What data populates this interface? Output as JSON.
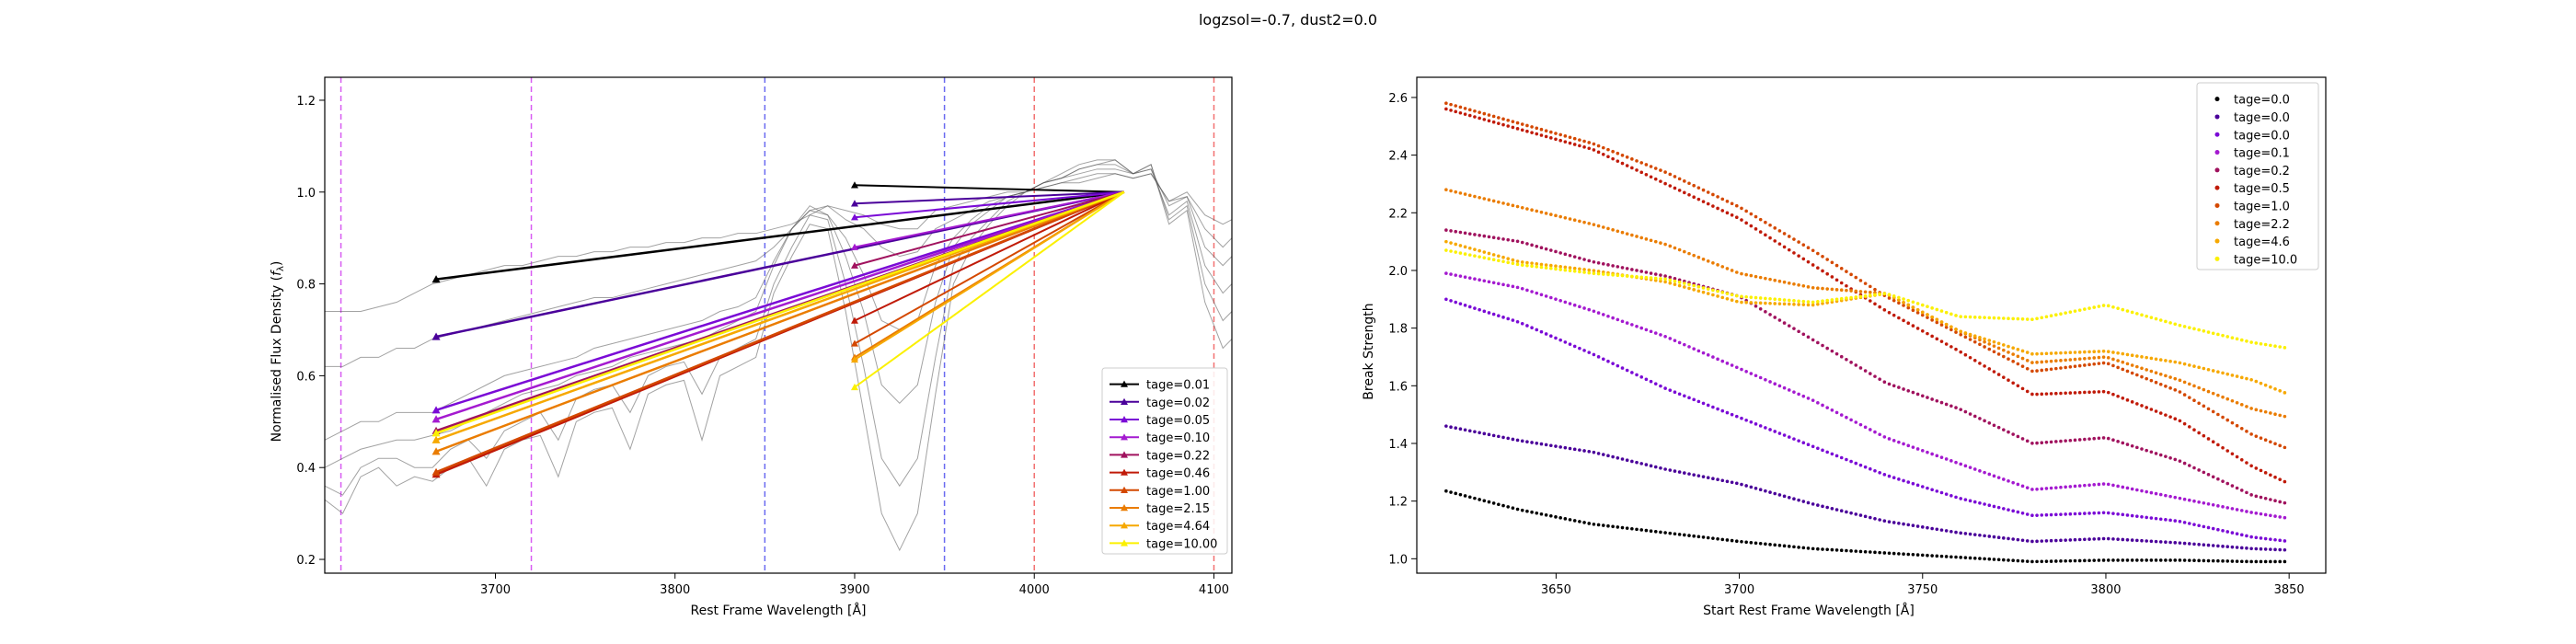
{
  "suptitle": "logzsol=-0.7, dust2=0.0",
  "chart_data": [
    {
      "type": "line",
      "xlabel": "Rest Frame Wavelength [Å]",
      "ylabel": "Normalised Flux Density (f_λ)",
      "xlim": [
        3605,
        4110
      ],
      "ylim": [
        0.17,
        1.25
      ],
      "xticks": [
        3700,
        3800,
        3900,
        4000,
        4100
      ],
      "yticks": [
        0.2,
        0.4,
        0.6,
        0.8,
        1.0,
        1.2
      ],
      "xtick_labels": [
        "3700",
        "3800",
        "3900",
        "4000",
        "4100"
      ],
      "ytick_labels": [
        "0.2",
        "0.4",
        "0.6",
        "0.8",
        "1.0",
        "1.2"
      ],
      "grid": false,
      "legend_position": "lower right",
      "band_lines": [
        {
          "x": 3614,
          "color": "#d85cf2"
        },
        {
          "x": 3720,
          "color": "#d85cf2"
        },
        {
          "x": 3850,
          "color": "#6a6af0"
        },
        {
          "x": 3950,
          "color": "#6a6af0"
        },
        {
          "x": 4000,
          "color": "#f27070"
        },
        {
          "x": 4100,
          "color": "#f27070"
        }
      ],
      "anchor": {
        "x": 4050,
        "y": 1.0
      },
      "series": [
        {
          "name": "tage=0.01",
          "color": "#000000",
          "blue_x": 3667,
          "blue_y": 0.81,
          "red_x": 3900,
          "red_y": 1.015
        },
        {
          "name": "tage=0.02",
          "color": "#4a009a",
          "blue_x": 3667,
          "blue_y": 0.685,
          "red_x": 3900,
          "red_y": 0.975
        },
        {
          "name": "tage=0.05",
          "color": "#7a0ad6",
          "blue_x": 3667,
          "blue_y": 0.525,
          "red_x": 3900,
          "red_y": 0.945
        },
        {
          "name": "tage=0.10",
          "color": "#a41ad0",
          "blue_x": 3667,
          "blue_y": 0.505,
          "red_x": 3900,
          "red_y": 0.88
        },
        {
          "name": "tage=0.22",
          "color": "#a0125e",
          "blue_x": 3667,
          "blue_y": 0.48,
          "red_x": 3900,
          "red_y": 0.84
        },
        {
          "name": "tage=0.46",
          "color": "#c01a08",
          "blue_x": 3667,
          "blue_y": 0.385,
          "red_x": 3900,
          "red_y": 0.72
        },
        {
          "name": "tage=1.00",
          "color": "#d44800",
          "blue_x": 3667,
          "blue_y": 0.39,
          "red_x": 3900,
          "red_y": 0.67
        },
        {
          "name": "tage=2.15",
          "color": "#ea7c00",
          "blue_x": 3667,
          "blue_y": 0.435,
          "red_x": 3900,
          "red_y": 0.64
        },
        {
          "name": "tage=4.64",
          "color": "#f6a800",
          "blue_x": 3667,
          "blue_y": 0.46,
          "red_x": 3900,
          "red_y": 0.635
        },
        {
          "name": "tage=10.00",
          "color": "#fbf000",
          "blue_x": 3667,
          "blue_y": 0.475,
          "red_x": 3900,
          "red_y": 0.575
        }
      ],
      "background_spectra": {
        "color": "#555555",
        "x": [
          3605,
          3615,
          3625,
          3635,
          3645,
          3655,
          3665,
          3675,
          3685,
          3695,
          3705,
          3715,
          3725,
          3735,
          3745,
          3755,
          3765,
          3775,
          3785,
          3795,
          3805,
          3815,
          3825,
          3835,
          3845,
          3855,
          3865,
          3875,
          3885,
          3895,
          3905,
          3915,
          3925,
          3935,
          3945,
          3955,
          3965,
          3975,
          3985,
          3995,
          4005,
          4015,
          4025,
          4035,
          4045,
          4055,
          4065,
          4075,
          4085,
          4095,
          4105,
          4110
        ],
        "curves": [
          [
            0.74,
            0.74,
            0.74,
            0.75,
            0.76,
            0.78,
            0.8,
            0.81,
            0.82,
            0.83,
            0.84,
            0.84,
            0.85,
            0.86,
            0.86,
            0.87,
            0.87,
            0.88,
            0.88,
            0.89,
            0.89,
            0.9,
            0.9,
            0.91,
            0.91,
            0.92,
            0.93,
            0.95,
            0.97,
            0.96,
            0.95,
            0.93,
            0.92,
            0.92,
            0.96,
            0.97,
            0.98,
            0.99,
            1.0,
            1.0,
            1.01,
            1.02,
            1.02,
            1.03,
            1.04,
            1.03,
            1.04,
            0.98,
            1.0,
            0.95,
            0.93,
            0.94
          ],
          [
            0.62,
            0.62,
            0.64,
            0.64,
            0.66,
            0.66,
            0.68,
            0.69,
            0.7,
            0.71,
            0.72,
            0.73,
            0.74,
            0.75,
            0.76,
            0.77,
            0.77,
            0.78,
            0.79,
            0.8,
            0.81,
            0.82,
            0.83,
            0.84,
            0.85,
            0.88,
            0.92,
            0.96,
            0.97,
            0.94,
            0.92,
            0.88,
            0.86,
            0.87,
            0.92,
            0.94,
            0.96,
            0.98,
            0.99,
            1.0,
            1.01,
            1.02,
            1.03,
            1.04,
            1.04,
            1.03,
            1.04,
            0.98,
            0.99,
            0.92,
            0.88,
            0.9
          ],
          [
            0.46,
            0.48,
            0.5,
            0.5,
            0.52,
            0.52,
            0.52,
            0.54,
            0.56,
            0.58,
            0.6,
            0.61,
            0.62,
            0.63,
            0.64,
            0.66,
            0.67,
            0.68,
            0.69,
            0.7,
            0.71,
            0.72,
            0.74,
            0.75,
            0.77,
            0.85,
            0.92,
            0.96,
            0.95,
            0.9,
            0.82,
            0.72,
            0.7,
            0.72,
            0.84,
            0.9,
            0.94,
            0.97,
            0.99,
            1.0,
            1.02,
            1.03,
            1.04,
            1.05,
            1.05,
            1.04,
            1.05,
            0.97,
            0.99,
            0.88,
            0.84,
            0.86
          ],
          [
            0.4,
            0.42,
            0.44,
            0.45,
            0.46,
            0.46,
            0.47,
            0.48,
            0.5,
            0.52,
            0.54,
            0.56,
            0.57,
            0.58,
            0.6,
            0.61,
            0.62,
            0.64,
            0.65,
            0.66,
            0.67,
            0.68,
            0.7,
            0.72,
            0.74,
            0.84,
            0.92,
            0.97,
            0.95,
            0.86,
            0.74,
            0.58,
            0.54,
            0.58,
            0.76,
            0.88,
            0.93,
            0.96,
            0.99,
            1.0,
            1.02,
            1.03,
            1.05,
            1.06,
            1.06,
            1.04,
            1.05,
            0.95,
            0.98,
            0.84,
            0.78,
            0.8
          ],
          [
            0.36,
            0.34,
            0.4,
            0.42,
            0.42,
            0.4,
            0.4,
            0.44,
            0.46,
            0.42,
            0.48,
            0.5,
            0.52,
            0.46,
            0.55,
            0.57,
            0.58,
            0.52,
            0.6,
            0.62,
            0.63,
            0.56,
            0.64,
            0.66,
            0.68,
            0.8,
            0.88,
            0.95,
            0.94,
            0.8,
            0.62,
            0.42,
            0.36,
            0.42,
            0.64,
            0.84,
            0.9,
            0.94,
            0.98,
            1.0,
            1.02,
            1.03,
            1.05,
            1.06,
            1.07,
            1.04,
            1.06,
            0.94,
            0.97,
            0.8,
            0.72,
            0.74
          ],
          [
            0.33,
            0.3,
            0.38,
            0.4,
            0.36,
            0.38,
            0.37,
            0.4,
            0.42,
            0.36,
            0.44,
            0.46,
            0.47,
            0.38,
            0.5,
            0.52,
            0.53,
            0.44,
            0.56,
            0.58,
            0.59,
            0.46,
            0.6,
            0.62,
            0.64,
            0.78,
            0.86,
            0.93,
            0.92,
            0.74,
            0.52,
            0.3,
            0.22,
            0.3,
            0.56,
            0.8,
            0.88,
            0.93,
            0.97,
            1.0,
            1.02,
            1.04,
            1.06,
            1.07,
            1.07,
            1.04,
            1.06,
            0.93,
            0.96,
            0.76,
            0.66,
            0.68
          ]
        ]
      }
    },
    {
      "type": "scatter",
      "xlabel": "Start Rest Frame Wavelength [Å]",
      "ylabel": "Break Strength",
      "xlim": [
        3612,
        3860
      ],
      "ylim": [
        0.95,
        2.67
      ],
      "xticks": [
        3650,
        3700,
        3750,
        3800,
        3850
      ],
      "yticks": [
        1.0,
        1.2,
        1.4,
        1.6,
        1.8,
        2.0,
        2.2,
        2.4,
        2.6
      ],
      "xtick_labels": [
        "3650",
        "3700",
        "3750",
        "3800",
        "3850"
      ],
      "ytick_labels": [
        "1.0",
        "1.2",
        "1.4",
        "1.6",
        "1.8",
        "2.0",
        "2.2",
        "2.4",
        "2.6"
      ],
      "grid": false,
      "legend_position": "upper right",
      "x": [
        3620,
        3640,
        3660,
        3680,
        3700,
        3720,
        3740,
        3760,
        3780,
        3800,
        3820,
        3840,
        3850
      ],
      "series": [
        {
          "name": "tage=0.0",
          "color": "#000000",
          "values": [
            1.235,
            1.17,
            1.12,
            1.09,
            1.06,
            1.035,
            1.02,
            1.005,
            0.99,
            0.995,
            0.995,
            0.99,
            0.99
          ]
        },
        {
          "name": "tage=0.0",
          "color": "#4a009a",
          "values": [
            1.46,
            1.41,
            1.37,
            1.31,
            1.26,
            1.19,
            1.13,
            1.09,
            1.06,
            1.07,
            1.055,
            1.035,
            1.03
          ]
        },
        {
          "name": "tage=0.0",
          "color": "#7a0ad6",
          "values": [
            1.9,
            1.82,
            1.71,
            1.59,
            1.49,
            1.39,
            1.29,
            1.21,
            1.15,
            1.16,
            1.13,
            1.075,
            1.06
          ]
        },
        {
          "name": "tage=0.1",
          "color": "#a41ad0",
          "values": [
            1.99,
            1.94,
            1.86,
            1.77,
            1.66,
            1.55,
            1.42,
            1.33,
            1.24,
            1.26,
            1.21,
            1.16,
            1.14
          ]
        },
        {
          "name": "tage=0.2",
          "color": "#a0125e",
          "values": [
            2.14,
            2.1,
            2.03,
            1.98,
            1.91,
            1.76,
            1.61,
            1.52,
            1.4,
            1.42,
            1.34,
            1.22,
            1.19
          ]
        },
        {
          "name": "tage=0.5",
          "color": "#c01a08",
          "values": [
            2.56,
            2.49,
            2.42,
            2.3,
            2.18,
            2.02,
            1.86,
            1.72,
            1.57,
            1.58,
            1.48,
            1.32,
            1.26
          ]
        },
        {
          "name": "tage=1.0",
          "color": "#d44800",
          "values": [
            2.58,
            2.51,
            2.44,
            2.34,
            2.22,
            2.07,
            1.91,
            1.78,
            1.65,
            1.68,
            1.58,
            1.43,
            1.38
          ]
        },
        {
          "name": "tage=2.2",
          "color": "#ea7c00",
          "values": [
            2.28,
            2.22,
            2.16,
            2.09,
            1.99,
            1.94,
            1.92,
            1.79,
            1.68,
            1.7,
            1.62,
            1.52,
            1.49
          ]
        },
        {
          "name": "tage=4.6",
          "color": "#f6a800",
          "values": [
            2.1,
            2.03,
            2.0,
            1.96,
            1.89,
            1.88,
            1.92,
            1.79,
            1.71,
            1.72,
            1.68,
            1.62,
            1.57
          ]
        },
        {
          "name": "tage=10.0",
          "color": "#fbf000",
          "values": [
            2.07,
            2.02,
            1.99,
            1.97,
            1.91,
            1.89,
            1.92,
            1.84,
            1.83,
            1.88,
            1.81,
            1.75,
            1.73
          ]
        }
      ]
    }
  ]
}
